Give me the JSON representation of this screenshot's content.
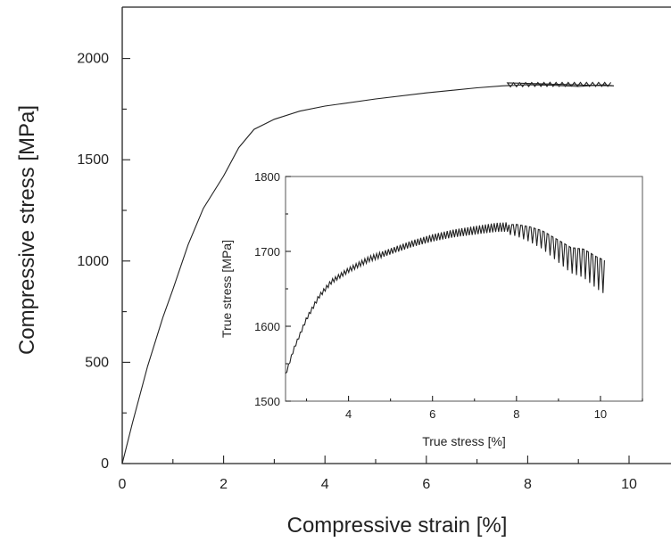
{
  "chart_data": [
    {
      "type": "line",
      "panel": "main",
      "title": "",
      "xlabel": "Compressive strain [%]",
      "ylabel": "Compressive stress [MPa]",
      "xlim": [
        0,
        11
      ],
      "ylim": [
        0,
        2250
      ],
      "xticks": [
        "0",
        "2",
        "4",
        "6",
        "8",
        "10"
      ],
      "yticks": [
        "0",
        "500",
        "1000",
        "1500",
        "2000"
      ],
      "grid": false,
      "legend": "none",
      "series": [
        {
          "x": [
            0,
            0.2,
            0.5,
            0.8,
            1.0,
            1.3,
            1.6,
            2.0,
            2.3,
            2.6,
            3.0,
            3.5,
            4.0,
            5.0,
            6.0,
            7.0,
            7.5,
            8.0,
            8.5,
            9.0,
            9.5,
            9.7
          ],
          "y": [
            0,
            200,
            480,
            720,
            860,
            1080,
            1260,
            1420,
            1560,
            1650,
            1700,
            1740,
            1765,
            1800,
            1830,
            1855,
            1865,
            1870,
            1868,
            1862,
            1870,
            1865
          ]
        }
      ]
    },
    {
      "type": "line",
      "panel": "inset",
      "title": "",
      "xlabel": "True stress [%]",
      "ylabel": "True stress [MPa]",
      "xlim": [
        2.5,
        11
      ],
      "ylim": [
        1500,
        1800
      ],
      "xticks": [
        "4",
        "6",
        "8",
        "10"
      ],
      "yticks": [
        "1500",
        "1600",
        "1700",
        "1800"
      ],
      "grid": false,
      "legend": "none",
      "series": [
        {
          "x": [
            2.5,
            2.7,
            3.0,
            3.3,
            3.6,
            4.0,
            4.5,
            5.0,
            5.5,
            6.0,
            6.5,
            7.0,
            7.5,
            8.0,
            8.3,
            8.6,
            9.0,
            9.3,
            9.6,
            9.9,
            10.1
          ],
          "y": [
            1535,
            1570,
            1610,
            1640,
            1660,
            1675,
            1690,
            1700,
            1710,
            1718,
            1724,
            1728,
            1732,
            1733,
            1730,
            1725,
            1712,
            1702,
            1700,
            1690,
            1685
          ]
        }
      ]
    }
  ]
}
